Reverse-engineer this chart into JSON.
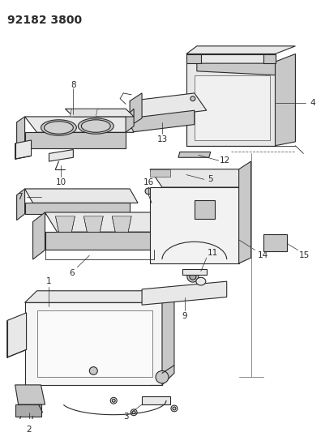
{
  "title_code": "92182 3800",
  "bg_color": "#ffffff",
  "line_color": "#2a2a2a",
  "fig_width": 3.96,
  "fig_height": 5.33,
  "dpi": 100,
  "title_fontsize": 10,
  "label_fontsize": 7.5
}
